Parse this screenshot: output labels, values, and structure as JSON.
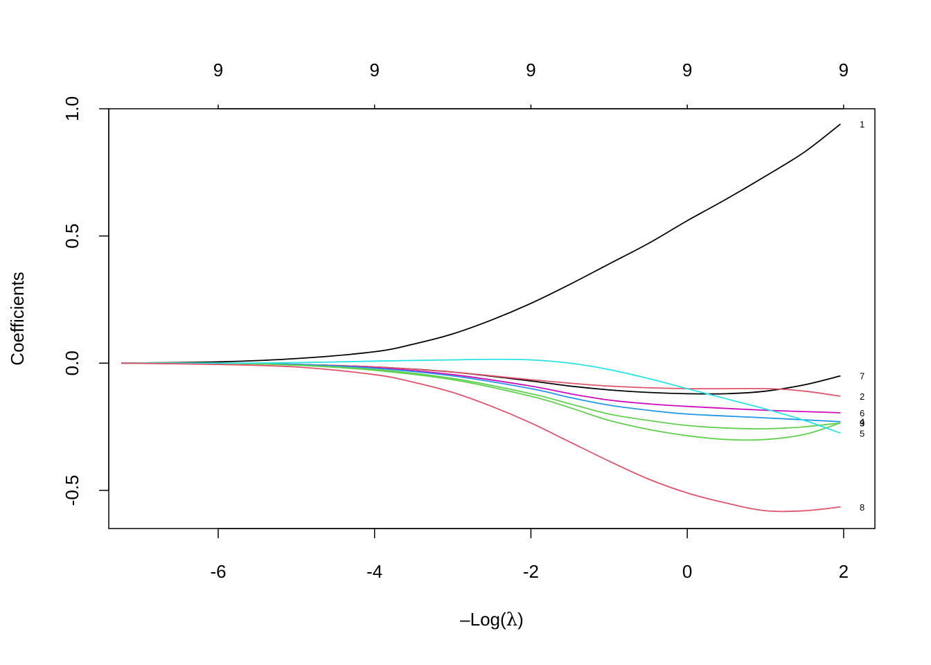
{
  "chart_data": {
    "type": "line",
    "xlabel_prefix": "–",
    "xlabel_main": "Log(",
    "xlabel_lambda": "λ",
    "xlabel_suffix": ")",
    "ylabel": "Coefficients",
    "xlim": [
      -7.4,
      2.4
    ],
    "ylim": [
      -0.65,
      1.0
    ],
    "x_ticks": [
      -6,
      -4,
      -2,
      0,
      2
    ],
    "x_tick_labels": [
      "-6",
      "-4",
      "-2",
      "0",
      "2"
    ],
    "y_ticks": [
      -0.5,
      0.0,
      0.5,
      1.0
    ],
    "y_tick_labels": [
      "-0.5",
      "0.0",
      "0.5",
      "1.0"
    ],
    "top_ticks": [
      -6,
      -4,
      -2,
      0,
      2
    ],
    "top_tick_labels": [
      "9",
      "9",
      "9",
      "9",
      "9"
    ],
    "grid": false,
    "series": [
      {
        "name": "1",
        "color": "#000000",
        "x": [
          -7.24,
          -6,
          -5,
          -4,
          -3.5,
          -3,
          -2.5,
          -2,
          -1.5,
          -1,
          -0.5,
          0,
          0.5,
          1,
          1.5,
          1.96
        ],
        "y": [
          0.0,
          0.005,
          0.018,
          0.045,
          0.075,
          0.115,
          0.17,
          0.235,
          0.31,
          0.39,
          0.47,
          0.56,
          0.645,
          0.735,
          0.83,
          0.94
        ]
      },
      {
        "name": "7",
        "color": "#000000",
        "x": [
          -7.24,
          -6,
          -5,
          -4,
          -3,
          -2,
          -1.5,
          -1,
          -0.5,
          0,
          0.5,
          1,
          1.5,
          1.96
        ],
        "y": [
          0.0,
          0.0,
          -0.005,
          -0.015,
          -0.035,
          -0.07,
          -0.09,
          -0.105,
          -0.115,
          -0.12,
          -0.12,
          -0.11,
          -0.085,
          -0.05
        ]
      },
      {
        "name": "2",
        "color": "#DF536B",
        "x": [
          -7.24,
          -6,
          -5,
          -4,
          -3,
          -2,
          -1,
          0,
          1,
          1.5,
          1.96
        ],
        "y": [
          0.0,
          0.0,
          -0.005,
          -0.015,
          -0.035,
          -0.065,
          -0.09,
          -0.1,
          -0.1,
          -0.11,
          -0.13
        ]
      },
      {
        "name": "6",
        "color": "#CD0BBC",
        "x": [
          -7.24,
          -6,
          -5,
          -4,
          -3,
          -2,
          -1.5,
          -1,
          -0.5,
          0,
          1,
          1.96
        ],
        "y": [
          0.0,
          0.0,
          -0.005,
          -0.018,
          -0.045,
          -0.09,
          -0.12,
          -0.145,
          -0.16,
          -0.17,
          -0.185,
          -0.195
        ]
      },
      {
        "name": "4",
        "color": "#2297E6",
        "x": [
          -7.24,
          -6,
          -5,
          -4,
          -3,
          -2,
          -1.5,
          -1,
          -0.5,
          0,
          1,
          1.96
        ],
        "y": [
          0.0,
          0.0,
          -0.005,
          -0.02,
          -0.05,
          -0.1,
          -0.135,
          -0.165,
          -0.185,
          -0.2,
          -0.215,
          -0.23
        ]
      },
      {
        "name": "9",
        "color": "#61D04F",
        "x": [
          -7.24,
          -6,
          -5,
          -4,
          -3,
          -2,
          -1.5,
          -1,
          -0.5,
          0,
          0.5,
          1,
          1.5,
          1.96
        ],
        "y": [
          0.0,
          0.0,
          -0.008,
          -0.025,
          -0.06,
          -0.12,
          -0.16,
          -0.2,
          -0.225,
          -0.245,
          -0.255,
          -0.258,
          -0.25,
          -0.235
        ]
      },
      {
        "name": "3",
        "color": "#61D04F",
        "x": [
          -7.24,
          -6,
          -5,
          -4,
          -3,
          -2,
          -1.5,
          -1,
          -0.5,
          0,
          0.5,
          1,
          1.5,
          1.96
        ],
        "y": [
          0.0,
          0.0,
          -0.008,
          -0.028,
          -0.065,
          -0.13,
          -0.175,
          -0.225,
          -0.26,
          -0.285,
          -0.3,
          -0.3,
          -0.28,
          -0.235
        ]
      },
      {
        "name": "5",
        "color": "#28E2E5",
        "x": [
          -7.24,
          -6,
          -5,
          -4,
          -3,
          -2.5,
          -2,
          -1.5,
          -1,
          -0.5,
          0,
          0.5,
          1,
          1.5,
          1.96
        ],
        "y": [
          0.0,
          0.0,
          0.002,
          0.008,
          0.013,
          0.015,
          0.013,
          0.0,
          -0.025,
          -0.06,
          -0.1,
          -0.14,
          -0.18,
          -0.225,
          -0.275
        ]
      },
      {
        "name": "8",
        "color": "#DF536B",
        "x": [
          -7.24,
          -6,
          -5,
          -4,
          -3.5,
          -3,
          -2.5,
          -2,
          -1.5,
          -1,
          -0.5,
          0,
          0.5,
          1,
          1.5,
          1.96
        ],
        "y": [
          0.0,
          -0.005,
          -0.015,
          -0.045,
          -0.075,
          -0.115,
          -0.17,
          -0.235,
          -0.31,
          -0.385,
          -0.455,
          -0.51,
          -0.55,
          -0.58,
          -0.58,
          -0.565
        ]
      }
    ]
  }
}
